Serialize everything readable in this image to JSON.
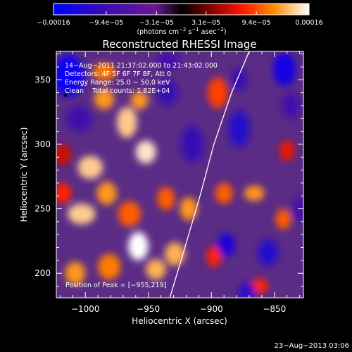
{
  "chart_data": {
    "type": "heatmap",
    "title": "Reconstructed RHESSI Image",
    "xlabel": "Heliocentric X (arcsec)",
    "ylabel": "Heliocentric Y (arcsec)",
    "xlim": [
      -1023,
      -827
    ],
    "ylim": [
      181,
      372
    ],
    "x_ticks": [
      {
        "value": -1000,
        "label": "−1000"
      },
      {
        "value": -950,
        "label": "−950"
      },
      {
        "value": -900,
        "label": "−900"
      },
      {
        "value": -850,
        "label": "−850"
      }
    ],
    "y_ticks": [
      {
        "value": 200,
        "label": "200"
      },
      {
        "value": 250,
        "label": "250"
      },
      {
        "value": 300,
        "label": "300"
      },
      {
        "value": 350,
        "label": "350"
      }
    ],
    "colorbar": {
      "ticks": [
        {
          "value": -0.00016,
          "label": "−0.00016"
        },
        {
          "value": -9.4e-05,
          "label": "−9.4e−05"
        },
        {
          "value": -3.1e-05,
          "label": "−3.1e−05"
        },
        {
          "value": 3.1e-05,
          "label": "3.1e−05"
        },
        {
          "value": 9.4e-05,
          "label": "9.4e−05"
        },
        {
          "value": 0.00016,
          "label": "0.00016"
        }
      ],
      "units_main": "(photons cm",
      "units_sup1": "−2",
      "units_mid": " s",
      "units_sup2": "−1",
      "units_end": " asec",
      "units_sup3": "−2",
      "units_close": ")",
      "range": [
        -0.00016,
        0.00016
      ]
    },
    "annotations": [
      "14−Aug−2011 21:37:02.000 to 21:43:02.000",
      "Detectors: 4F 5F 6F 7F 8F, Att 0",
      "Energy Range: 25.0 − 50.0 keV",
      "Clean    Total counts: 1.82E+04"
    ],
    "peak_text": "Position of Peak = [−955,219]",
    "peak": {
      "x": -955,
      "y": 219
    },
    "limb_curve": [
      {
        "x": -933,
        "y": 181
      },
      {
        "x": -921,
        "y": 220
      },
      {
        "x": -909,
        "y": 260
      },
      {
        "x": -898,
        "y": 300
      },
      {
        "x": -884,
        "y": 340
      },
      {
        "x": -870,
        "y": 372
      }
    ],
    "marker": {
      "x": -1016,
      "y": 338
    },
    "blobs": [
      {
        "x": -1013,
        "y": 353,
        "w": 12,
        "h": 16,
        "v": -0.00015
      },
      {
        "x": -1005,
        "y": 320,
        "w": 10,
        "h": 10,
        "v": -9e-05
      },
      {
        "x": -985,
        "y": 356,
        "w": 9,
        "h": 7,
        "v": 0.00011
      },
      {
        "x": -985,
        "y": 335,
        "w": 8,
        "h": 8,
        "v": 0.00012
      },
      {
        "x": -1018,
        "y": 292,
        "w": 7,
        "h": 8,
        "v": 6e-05
      },
      {
        "x": -996,
        "y": 282,
        "w": 10,
        "h": 9,
        "v": 0.00014
      },
      {
        "x": -1003,
        "y": 246,
        "w": 11,
        "h": 8,
        "v": 0.00014
      },
      {
        "x": -1018,
        "y": 262,
        "w": 7,
        "h": 8,
        "v": 8e-05
      },
      {
        "x": -983,
        "y": 262,
        "w": 8,
        "h": 9,
        "v": 0.00012
      },
      {
        "x": -965,
        "y": 246,
        "w": 9,
        "h": 10,
        "v": 0.0001
      },
      {
        "x": -1008,
        "y": 200,
        "w": 8,
        "h": 9,
        "v": 0.00012
      },
      {
        "x": -981,
        "y": 205,
        "w": 9,
        "h": 10,
        "v": 0.00011
      },
      {
        "x": -967,
        "y": 317,
        "w": 8,
        "h": 12,
        "v": 0.00014
      },
      {
        "x": -957,
        "y": 334,
        "w": 7,
        "h": 7,
        "v": 0.00012
      },
      {
        "x": -952,
        "y": 294,
        "w": 8,
        "h": 9,
        "v": 0.00015
      },
      {
        "x": -958,
        "y": 221,
        "w": 8,
        "h": 11,
        "v": 0.00016
      },
      {
        "x": -944,
        "y": 203,
        "w": 8,
        "h": 8,
        "v": 0.00013
      },
      {
        "x": -936,
        "y": 258,
        "w": 7,
        "h": 9,
        "v": 0.0001
      },
      {
        "x": -929,
        "y": 215,
        "w": 8,
        "h": 9,
        "v": 0.00013
      },
      {
        "x": -918,
        "y": 250,
        "w": 7,
        "h": 9,
        "v": 0.00012
      },
      {
        "x": -935,
        "y": 340,
        "w": 8,
        "h": 10,
        "v": -0.0001
      },
      {
        "x": -915,
        "y": 300,
        "w": 9,
        "h": 14,
        "v": -0.0001
      },
      {
        "x": -934,
        "y": 365,
        "w": 9,
        "h": 7,
        "v": -8e-05
      },
      {
        "x": -895,
        "y": 340,
        "w": 8,
        "h": 12,
        "v": 9e-05
      },
      {
        "x": -890,
        "y": 262,
        "w": 7,
        "h": 8,
        "v": 0.0001
      },
      {
        "x": -898,
        "y": 213,
        "w": 6,
        "h": 8,
        "v": 8e-05
      },
      {
        "x": -866,
        "y": 262,
        "w": 8,
        "h": 6,
        "v": 0.00012
      },
      {
        "x": -862,
        "y": 190,
        "w": 7,
        "h": 6,
        "v": 8e-05
      },
      {
        "x": -843,
        "y": 242,
        "w": 6,
        "h": 8,
        "v": 0.0001
      },
      {
        "x": -840,
        "y": 295,
        "w": 6,
        "h": 8,
        "v": 7e-05
      },
      {
        "x": -842,
        "y": 358,
        "w": 9,
        "h": 13,
        "v": -0.00014
      },
      {
        "x": -878,
        "y": 312,
        "w": 8,
        "h": 14,
        "v": -0.00012
      },
      {
        "x": -878,
        "y": 350,
        "w": 6,
        "h": 9,
        "v": -0.0001
      },
      {
        "x": -888,
        "y": 222,
        "w": 7,
        "h": 9,
        "v": -0.00013
      },
      {
        "x": -855,
        "y": 216,
        "w": 8,
        "h": 10,
        "v": -0.00012
      },
      {
        "x": -872,
        "y": 185,
        "w": 7,
        "h": 8,
        "v": -0.00011
      },
      {
        "x": -837,
        "y": 330,
        "w": 7,
        "h": 10,
        "v": -9e-05
      },
      {
        "x": -830,
        "y": 250,
        "w": 6,
        "h": 10,
        "v": -8e-05
      }
    ]
  },
  "footer": {
    "date": "23−Aug−2013 03:06"
  }
}
